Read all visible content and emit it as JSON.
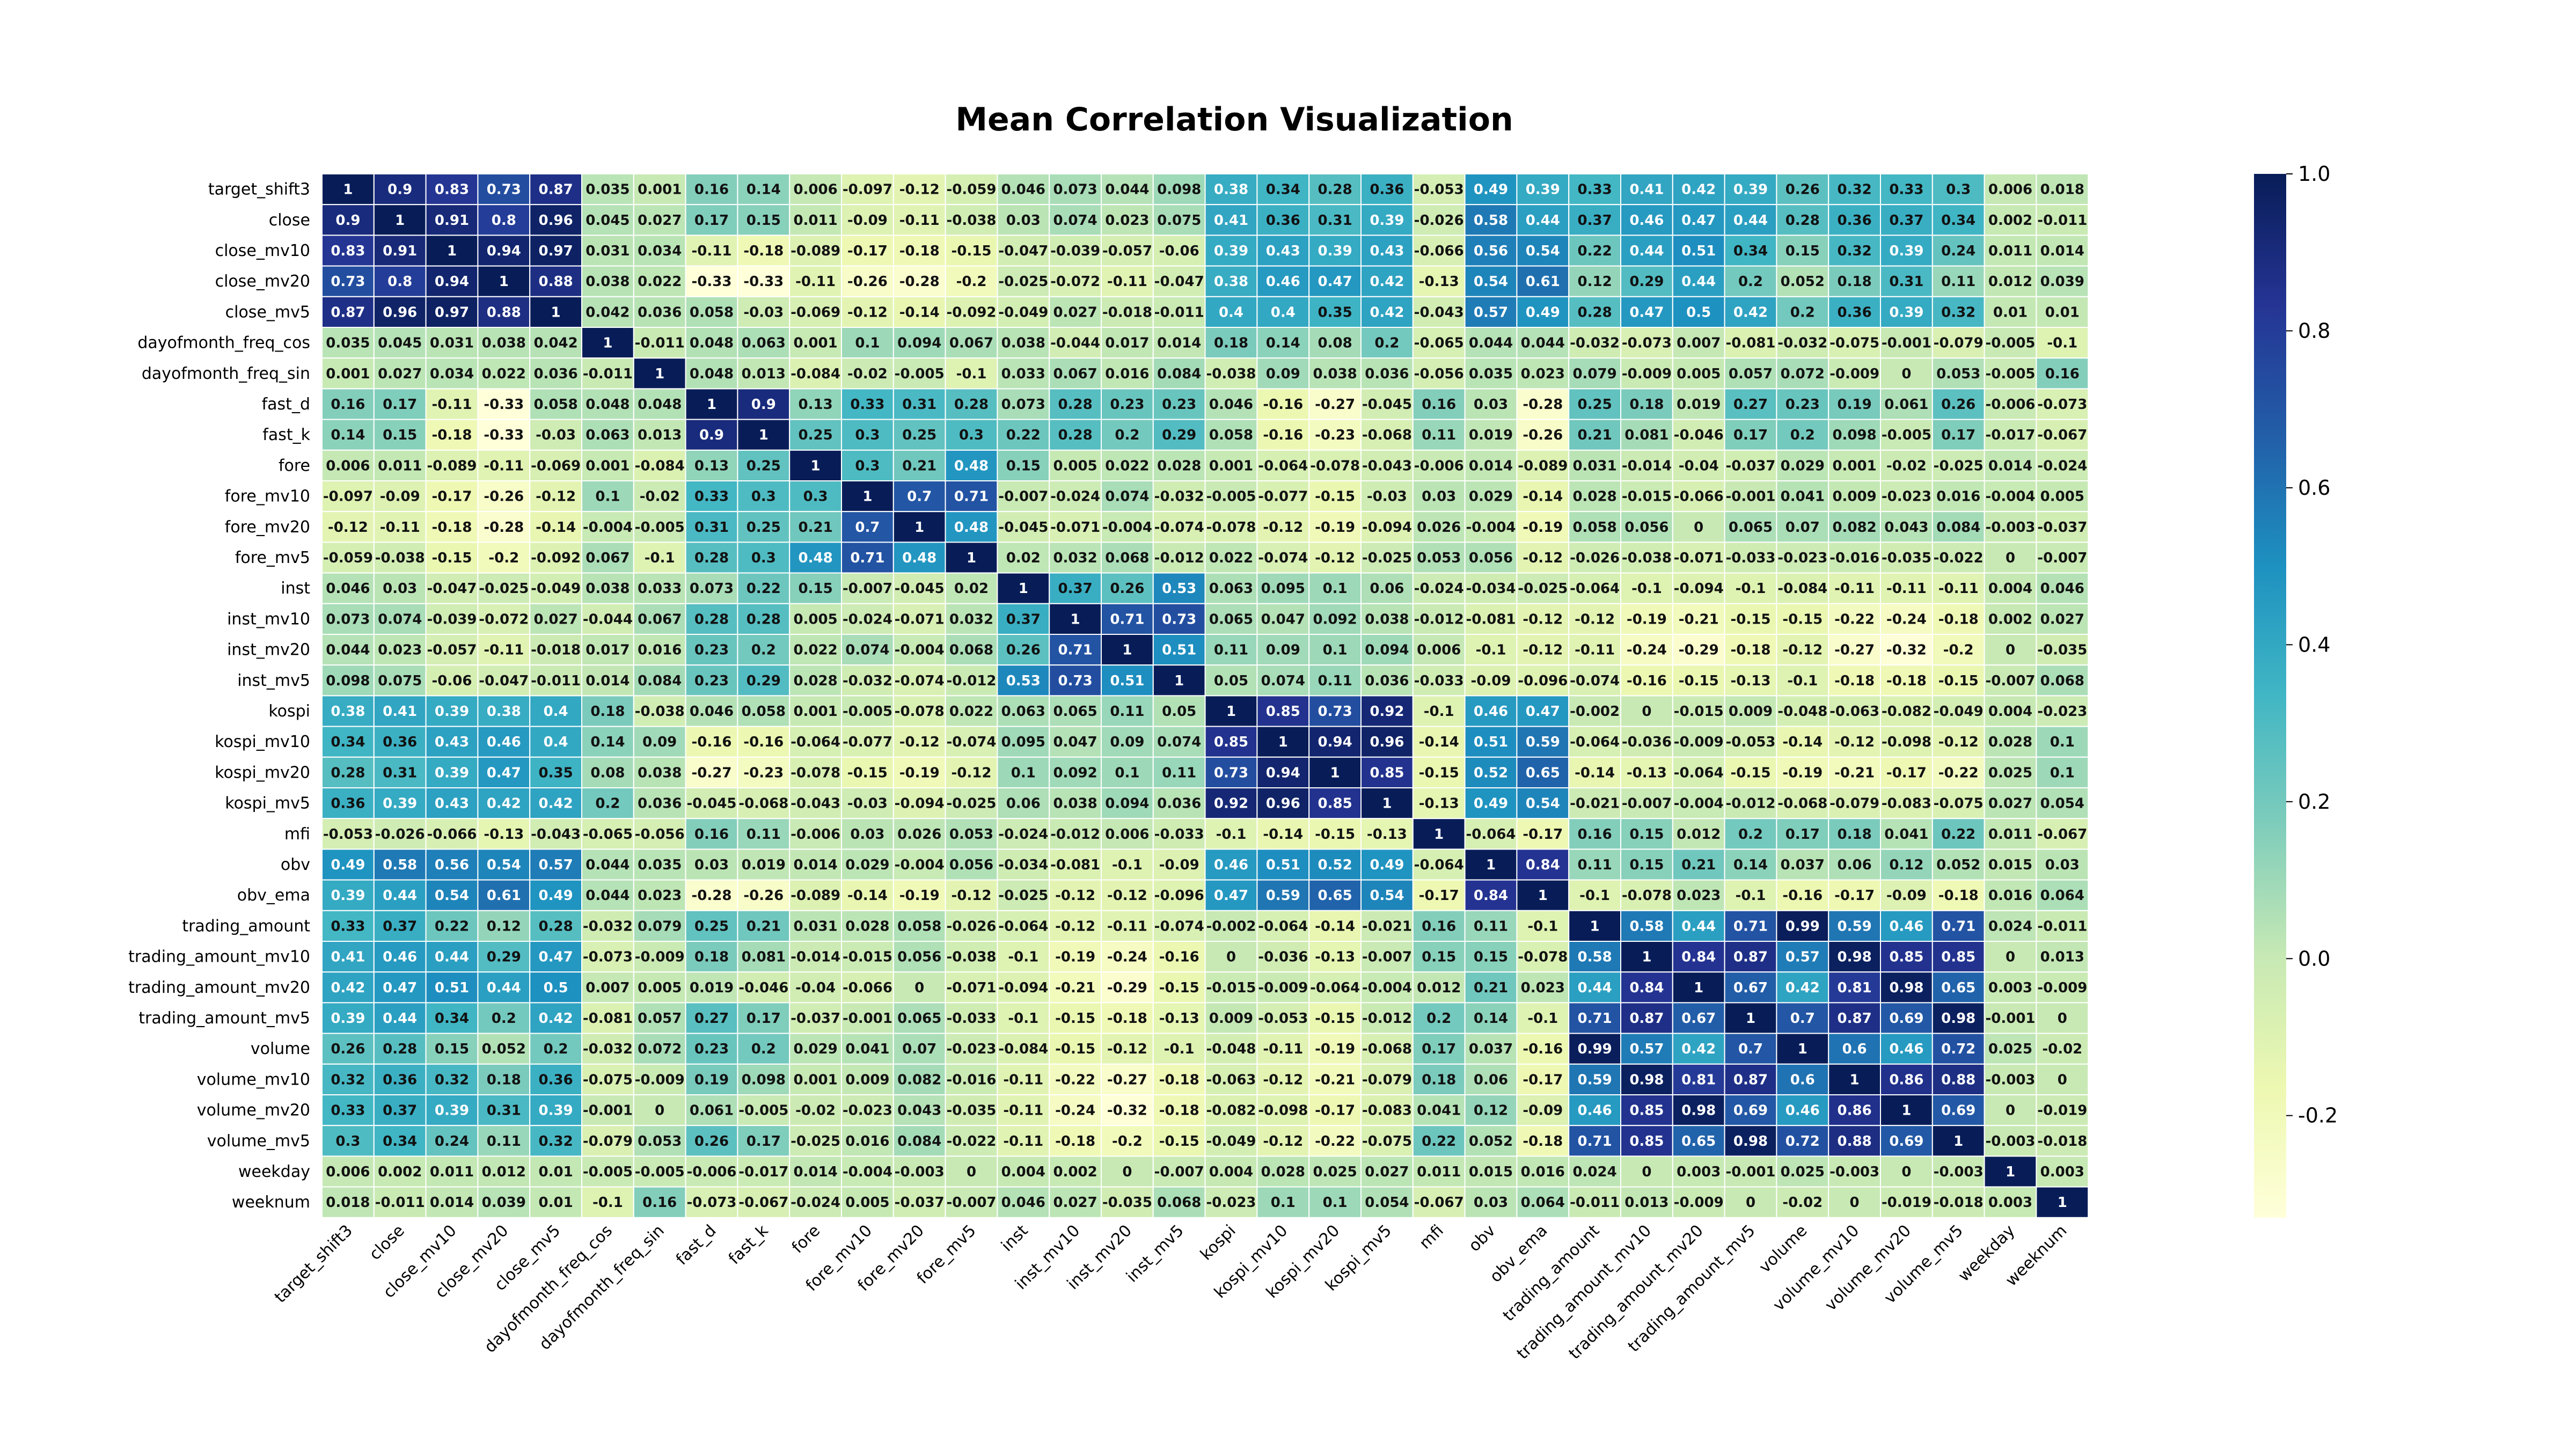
{
  "chart_data": {
    "type": "heatmap",
    "title": "Mean Correlation Visualization",
    "labels": [
      "target_shift3",
      "close",
      "close_mv10",
      "close_mv20",
      "close_mv5",
      "dayofmonth_freq_cos",
      "dayofmonth_freq_sin",
      "fast_d",
      "fast_k",
      "fore",
      "fore_mv10",
      "fore_mv20",
      "fore_mv5",
      "inst",
      "inst_mv10",
      "inst_mv20",
      "inst_mv5",
      "kospi",
      "kospi_mv10",
      "kospi_mv20",
      "kospi_mv5",
      "mfi",
      "obv",
      "obv_ema",
      "trading_amount",
      "trading_amount_mv10",
      "trading_amount_mv20",
      "trading_amount_mv5",
      "volume",
      "volume_mv10",
      "volume_mv20",
      "volume_mv5",
      "weekday",
      "weeknum"
    ],
    "matrix": [
      [
        1,
        0.9,
        0.83,
        0.73,
        0.87,
        0.035,
        0.001,
        0.16,
        0.14,
        0.006,
        -0.097,
        -0.12,
        -0.059,
        0.046,
        0.073,
        0.044,
        0.098,
        0.38,
        0.34,
        0.28,
        0.36,
        -0.053,
        0.49,
        0.39,
        0.33,
        0.41,
        0.42,
        0.39,
        0.26,
        0.32,
        0.33,
        0.3,
        0.006,
        0.018
      ],
      [
        0.9,
        1,
        0.91,
        0.8,
        0.96,
        0.045,
        0.027,
        0.17,
        0.15,
        0.011,
        -0.09,
        -0.11,
        -0.038,
        0.03,
        0.074,
        0.023,
        0.075,
        0.41,
        0.36,
        0.31,
        0.39,
        -0.026,
        0.58,
        0.44,
        0.37,
        0.46,
        0.47,
        0.44,
        0.28,
        0.36,
        0.37,
        0.34,
        0.002,
        -0.011
      ],
      [
        0.83,
        0.91,
        1,
        0.94,
        0.97,
        0.031,
        0.034,
        -0.11,
        -0.18,
        -0.089,
        -0.17,
        -0.18,
        -0.15,
        -0.047,
        -0.039,
        -0.057,
        -0.06,
        0.39,
        0.43,
        0.39,
        0.43,
        -0.066,
        0.56,
        0.54,
        0.22,
        0.44,
        0.51,
        0.34,
        0.15,
        0.32,
        0.39,
        0.24,
        0.011,
        0.014
      ],
      [
        0.73,
        0.8,
        0.94,
        1,
        0.88,
        0.038,
        0.022,
        -0.33,
        -0.33,
        -0.11,
        -0.26,
        -0.28,
        -0.2,
        -0.025,
        -0.072,
        -0.11,
        -0.047,
        0.38,
        0.46,
        0.47,
        0.42,
        -0.13,
        0.54,
        0.61,
        0.12,
        0.29,
        0.44,
        0.2,
        0.052,
        0.18,
        0.31,
        0.11,
        0.012,
        0.039
      ],
      [
        0.87,
        0.96,
        0.97,
        0.88,
        1,
        0.042,
        0.036,
        0.058,
        -0.03,
        -0.069,
        -0.12,
        -0.14,
        -0.092,
        -0.049,
        0.027,
        -0.018,
        -0.011,
        0.4,
        0.4,
        0.35,
        0.42,
        -0.043,
        0.57,
        0.49,
        0.28,
        0.47,
        0.5,
        0.42,
        0.2,
        0.36,
        0.39,
        0.32,
        0.01,
        0.01
      ],
      [
        0.035,
        0.045,
        0.031,
        0.038,
        0.042,
        1,
        -0.011,
        0.048,
        0.063,
        0.001,
        0.1,
        0.094,
        0.067,
        0.038,
        -0.044,
        0.017,
        0.014,
        0.18,
        0.14,
        0.08,
        0.2,
        -0.065,
        0.044,
        0.044,
        -0.032,
        -0.073,
        0.007,
        -0.081,
        -0.032,
        -0.075,
        -0.001,
        -0.079,
        -0.005,
        -0.1
      ],
      [
        0.001,
        0.027,
        0.034,
        0.022,
        0.036,
        -0.011,
        1,
        0.048,
        0.013,
        -0.084,
        -0.02,
        -0.005,
        -0.1,
        0.033,
        0.067,
        0.016,
        0.084,
        -0.038,
        0.09,
        0.038,
        0.036,
        -0.056,
        0.035,
        0.023,
        0.079,
        -0.009,
        0.005,
        0.057,
        0.072,
        -0.009,
        0,
        0.053,
        -0.005,
        0.16
      ],
      [
        0.16,
        0.17,
        -0.11,
        -0.33,
        0.058,
        0.048,
        0.048,
        1,
        0.9,
        0.13,
        0.33,
        0.31,
        0.28,
        0.073,
        0.28,
        0.23,
        0.23,
        0.046,
        -0.16,
        -0.27,
        -0.045,
        0.16,
        0.03,
        -0.28,
        0.25,
        0.18,
        0.019,
        0.27,
        0.23,
        0.19,
        0.061,
        0.26,
        -0.006,
        -0.073
      ],
      [
        0.14,
        0.15,
        -0.18,
        -0.33,
        -0.03,
        0.063,
        0.013,
        0.9,
        1,
        0.25,
        0.3,
        0.25,
        0.3,
        0.22,
        0.28,
        0.2,
        0.29,
        0.058,
        -0.16,
        -0.23,
        -0.068,
        0.11,
        0.019,
        -0.26,
        0.21,
        0.081,
        -0.046,
        0.17,
        0.2,
        0.098,
        -0.005,
        0.17,
        -0.017,
        -0.067
      ],
      [
        0.006,
        0.011,
        -0.089,
        -0.11,
        -0.069,
        0.001,
        -0.084,
        0.13,
        0.25,
        1,
        0.3,
        0.21,
        0.48,
        0.15,
        0.005,
        0.022,
        0.028,
        0.001,
        -0.064,
        -0.078,
        -0.043,
        -0.006,
        0.014,
        -0.089,
        0.031,
        -0.014,
        -0.04,
        -0.037,
        0.029,
        0.001,
        -0.02,
        -0.025,
        0.014,
        -0.024
      ],
      [
        -0.097,
        -0.09,
        -0.17,
        -0.26,
        -0.12,
        0.1,
        -0.02,
        0.33,
        0.3,
        0.3,
        1,
        0.7,
        0.71,
        -0.007,
        -0.024,
        0.074,
        -0.032,
        -0.005,
        -0.077,
        -0.15,
        -0.03,
        0.03,
        0.029,
        -0.14,
        0.028,
        -0.015,
        -0.066,
        -0.001,
        0.041,
        0.009,
        -0.023,
        0.016,
        -0.004,
        0.005
      ],
      [
        -0.12,
        -0.11,
        -0.18,
        -0.28,
        -0.14,
        -0.004,
        -0.005,
        0.31,
        0.25,
        0.21,
        0.7,
        1,
        0.48,
        -0.045,
        -0.071,
        -0.004,
        -0.074,
        -0.078,
        -0.12,
        -0.19,
        -0.094,
        0.026,
        -0.004,
        -0.19,
        0.058,
        0.056,
        0,
        0.065,
        0.07,
        0.082,
        0.043,
        0.084,
        -0.003,
        -0.037
      ],
      [
        -0.059,
        -0.038,
        -0.15,
        -0.2,
        -0.092,
        0.067,
        -0.1,
        0.28,
        0.3,
        0.48,
        0.71,
        0.48,
        1,
        0.02,
        0.032,
        0.068,
        -0.012,
        0.022,
        -0.074,
        -0.12,
        -0.025,
        0.053,
        0.056,
        -0.12,
        -0.026,
        -0.038,
        -0.071,
        -0.033,
        -0.023,
        -0.016,
        -0.035,
        -0.022,
        0,
        -0.007
      ],
      [
        0.046,
        0.03,
        -0.047,
        -0.025,
        -0.049,
        0.038,
        0.033,
        0.073,
        0.22,
        0.15,
        -0.007,
        -0.045,
        0.02,
        1,
        0.37,
        0.26,
        0.53,
        0.063,
        0.095,
        0.1,
        0.06,
        -0.024,
        -0.034,
        -0.025,
        -0.064,
        -0.1,
        -0.094,
        -0.1,
        -0.084,
        -0.11,
        -0.11,
        -0.11,
        0.004,
        0.046
      ],
      [
        0.073,
        0.074,
        -0.039,
        -0.072,
        0.027,
        -0.044,
        0.067,
        0.28,
        0.28,
        0.005,
        -0.024,
        -0.071,
        0.032,
        0.37,
        1,
        0.71,
        0.73,
        0.065,
        0.047,
        0.092,
        0.038,
        -0.012,
        -0.081,
        -0.12,
        -0.12,
        -0.19,
        -0.21,
        -0.15,
        -0.15,
        -0.22,
        -0.24,
        -0.18,
        0.002,
        0.027
      ],
      [
        0.044,
        0.023,
        -0.057,
        -0.11,
        -0.018,
        0.017,
        0.016,
        0.23,
        0.2,
        0.022,
        0.074,
        -0.004,
        0.068,
        0.26,
        0.71,
        1,
        0.51,
        0.11,
        0.09,
        0.1,
        0.094,
        0.006,
        -0.1,
        -0.12,
        -0.11,
        -0.24,
        -0.29,
        -0.18,
        -0.12,
        -0.27,
        -0.32,
        -0.2,
        0,
        -0.035
      ],
      [
        0.098,
        0.075,
        -0.06,
        -0.047,
        -0.011,
        0.014,
        0.084,
        0.23,
        0.29,
        0.028,
        -0.032,
        -0.074,
        -0.012,
        0.53,
        0.73,
        0.51,
        1,
        0.05,
        0.074,
        0.11,
        0.036,
        -0.033,
        -0.09,
        -0.096,
        -0.074,
        -0.16,
        -0.15,
        -0.13,
        -0.1,
        -0.18,
        -0.18,
        -0.15,
        -0.007,
        0.068
      ],
      [
        0.38,
        0.41,
        0.39,
        0.38,
        0.4,
        0.18,
        -0.038,
        0.046,
        0.058,
        0.001,
        -0.005,
        -0.078,
        0.022,
        0.063,
        0.065,
        0.11,
        0.05,
        1,
        0.85,
        0.73,
        0.92,
        -0.1,
        0.46,
        0.47,
        -0.002,
        0,
        -0.015,
        0.009,
        -0.048,
        -0.063,
        -0.082,
        -0.049,
        0.004,
        -0.023
      ],
      [
        0.34,
        0.36,
        0.43,
        0.46,
        0.4,
        0.14,
        0.09,
        -0.16,
        -0.16,
        -0.064,
        -0.077,
        -0.12,
        -0.074,
        0.095,
        0.047,
        0.09,
        0.074,
        0.85,
        1,
        0.94,
        0.96,
        -0.14,
        0.51,
        0.59,
        -0.064,
        -0.036,
        -0.009,
        -0.053,
        -0.14,
        -0.12,
        -0.098,
        -0.12,
        0.028,
        0.1
      ],
      [
        0.28,
        0.31,
        0.39,
        0.47,
        0.35,
        0.08,
        0.038,
        -0.27,
        -0.23,
        -0.078,
        -0.15,
        -0.19,
        -0.12,
        0.1,
        0.092,
        0.1,
        0.11,
        0.73,
        0.94,
        1,
        0.85,
        -0.15,
        0.52,
        0.65,
        -0.14,
        -0.13,
        -0.064,
        -0.15,
        -0.19,
        -0.21,
        -0.17,
        -0.22,
        0.025,
        0.1
      ],
      [
        0.36,
        0.39,
        0.43,
        0.42,
        0.42,
        0.2,
        0.036,
        -0.045,
        -0.068,
        -0.043,
        -0.03,
        -0.094,
        -0.025,
        0.06,
        0.038,
        0.094,
        0.036,
        0.92,
        0.96,
        0.85,
        1,
        -0.13,
        0.49,
        0.54,
        -0.021,
        -0.007,
        -0.004,
        -0.012,
        -0.068,
        -0.079,
        -0.083,
        -0.075,
        0.027,
        0.054
      ],
      [
        -0.053,
        -0.026,
        -0.066,
        -0.13,
        -0.043,
        -0.065,
        -0.056,
        0.16,
        0.11,
        -0.006,
        0.03,
        0.026,
        0.053,
        -0.024,
        -0.012,
        0.006,
        -0.033,
        -0.1,
        -0.14,
        -0.15,
        -0.13,
        1,
        -0.064,
        -0.17,
        0.16,
        0.15,
        0.012,
        0.2,
        0.17,
        0.18,
        0.041,
        0.22,
        0.011,
        -0.067
      ],
      [
        0.49,
        0.58,
        0.56,
        0.54,
        0.57,
        0.044,
        0.035,
        0.03,
        0.019,
        0.014,
        0.029,
        -0.004,
        0.056,
        -0.034,
        -0.081,
        -0.1,
        -0.09,
        0.46,
        0.51,
        0.52,
        0.49,
        -0.064,
        1,
        0.84,
        0.11,
        0.15,
        0.21,
        0.14,
        0.037,
        0.06,
        0.12,
        0.052,
        0.015,
        0.03
      ],
      [
        0.39,
        0.44,
        0.54,
        0.61,
        0.49,
        0.044,
        0.023,
        -0.28,
        -0.26,
        -0.089,
        -0.14,
        -0.19,
        -0.12,
        -0.025,
        -0.12,
        -0.12,
        -0.096,
        0.47,
        0.59,
        0.65,
        0.54,
        -0.17,
        0.84,
        1,
        -0.1,
        -0.078,
        0.023,
        -0.1,
        -0.16,
        -0.17,
        -0.09,
        -0.18,
        0.016,
        0.064
      ],
      [
        0.33,
        0.37,
        0.22,
        0.12,
        0.28,
        -0.032,
        0.079,
        0.25,
        0.21,
        0.031,
        0.028,
        0.058,
        -0.026,
        -0.064,
        -0.12,
        -0.11,
        -0.074,
        -0.002,
        -0.064,
        -0.14,
        -0.021,
        0.16,
        0.11,
        -0.1,
        1,
        0.58,
        0.44,
        0.71,
        0.99,
        0.59,
        0.46,
        0.71,
        0.024,
        -0.011
      ],
      [
        0.41,
        0.46,
        0.44,
        0.29,
        0.47,
        -0.073,
        -0.009,
        0.18,
        0.081,
        -0.014,
        -0.015,
        0.056,
        -0.038,
        -0.1,
        -0.19,
        -0.24,
        -0.16,
        0,
        -0.036,
        -0.13,
        -0.007,
        0.15,
        0.15,
        -0.078,
        0.58,
        1,
        0.84,
        0.87,
        0.57,
        0.98,
        0.85,
        0.85,
        0,
        0.013
      ],
      [
        0.42,
        0.47,
        0.51,
        0.44,
        0.5,
        0.007,
        0.005,
        0.019,
        -0.046,
        -0.04,
        -0.066,
        0,
        -0.071,
        -0.094,
        -0.21,
        -0.29,
        -0.15,
        -0.015,
        -0.009,
        -0.064,
        -0.004,
        0.012,
        0.21,
        0.023,
        0.44,
        0.84,
        1,
        0.67,
        0.42,
        0.81,
        0.98,
        0.65,
        0.003,
        -0.009
      ],
      [
        0.39,
        0.44,
        0.34,
        0.2,
        0.42,
        -0.081,
        0.057,
        0.27,
        0.17,
        -0.037,
        -0.001,
        0.065,
        -0.033,
        -0.1,
        -0.15,
        -0.18,
        -0.13,
        0.009,
        -0.053,
        -0.15,
        -0.012,
        0.2,
        0.14,
        -0.1,
        0.71,
        0.87,
        0.67,
        1,
        0.7,
        0.87,
        0.69,
        0.98,
        -0.001,
        0
      ],
      [
        0.26,
        0.28,
        0.15,
        0.052,
        0.2,
        -0.032,
        0.072,
        0.23,
        0.2,
        0.029,
        0.041,
        0.07,
        -0.023,
        -0.084,
        -0.15,
        -0.12,
        -0.1,
        -0.048,
        -0.11,
        -0.19,
        -0.068,
        0.17,
        0.037,
        -0.16,
        0.99,
        0.57,
        0.42,
        0.7,
        1,
        0.6,
        0.46,
        0.72,
        0.025,
        -0.02
      ],
      [
        0.32,
        0.36,
        0.32,
        0.18,
        0.36,
        -0.075,
        -0.009,
        0.19,
        0.098,
        0.001,
        0.009,
        0.082,
        -0.016,
        -0.11,
        -0.22,
        -0.27,
        -0.18,
        -0.063,
        -0.12,
        -0.21,
        -0.079,
        0.18,
        0.06,
        -0.17,
        0.59,
        0.98,
        0.81,
        0.87,
        0.6,
        1,
        0.86,
        0.88,
        -0.003,
        0
      ],
      [
        0.33,
        0.37,
        0.39,
        0.31,
        0.39,
        -0.001,
        0,
        0.061,
        -0.005,
        -0.02,
        -0.023,
        0.043,
        -0.035,
        -0.11,
        -0.24,
        -0.32,
        -0.18,
        -0.082,
        -0.098,
        -0.17,
        -0.083,
        0.041,
        0.12,
        -0.09,
        0.46,
        0.85,
        0.98,
        0.69,
        0.46,
        0.86,
        1,
        0.69,
        0,
        -0.019
      ],
      [
        0.3,
        0.34,
        0.24,
        0.11,
        0.32,
        -0.079,
        0.053,
        0.26,
        0.17,
        -0.025,
        0.016,
        0.084,
        -0.022,
        -0.11,
        -0.18,
        -0.2,
        -0.15,
        -0.049,
        -0.12,
        -0.22,
        -0.075,
        0.22,
        0.052,
        -0.18,
        0.71,
        0.85,
        0.65,
        0.98,
        0.72,
        0.88,
        0.69,
        1,
        -0.003,
        -0.018
      ],
      [
        0.006,
        0.002,
        0.011,
        0.012,
        0.01,
        -0.005,
        -0.005,
        -0.006,
        -0.017,
        0.014,
        -0.004,
        -0.003,
        0,
        0.004,
        0.002,
        0,
        -0.007,
        0.004,
        0.028,
        0.025,
        0.027,
        0.011,
        0.015,
        0.016,
        0.024,
        0,
        0.003,
        -0.001,
        0.025,
        -0.003,
        0,
        -0.003,
        1,
        0.003
      ],
      [
        0.018,
        -0.011,
        0.014,
        0.039,
        0.01,
        -0.1,
        0.16,
        -0.073,
        -0.067,
        -0.024,
        0.005,
        -0.037,
        -0.007,
        0.046,
        0.027,
        -0.035,
        0.068,
        -0.023,
        0.1,
        0.1,
        0.054,
        -0.067,
        0.03,
        0.064,
        -0.011,
        0.013,
        -0.009,
        0,
        -0.02,
        0,
        -0.019,
        -0.018,
        0.003,
        1
      ]
    ],
    "colormap": "YlGnBu",
    "vmin": -0.33,
    "vmax": 1.0,
    "colorbar_ticks": [
      1.0,
      0.8,
      0.6,
      0.4,
      0.2,
      0.0,
      -0.2
    ],
    "colorbar_tick_labels": [
      "1.0",
      "0.8",
      "0.6",
      "0.4",
      "0.2",
      "0.0",
      "-0.2"
    ],
    "cell_borders": "white",
    "annotated": true
  }
}
